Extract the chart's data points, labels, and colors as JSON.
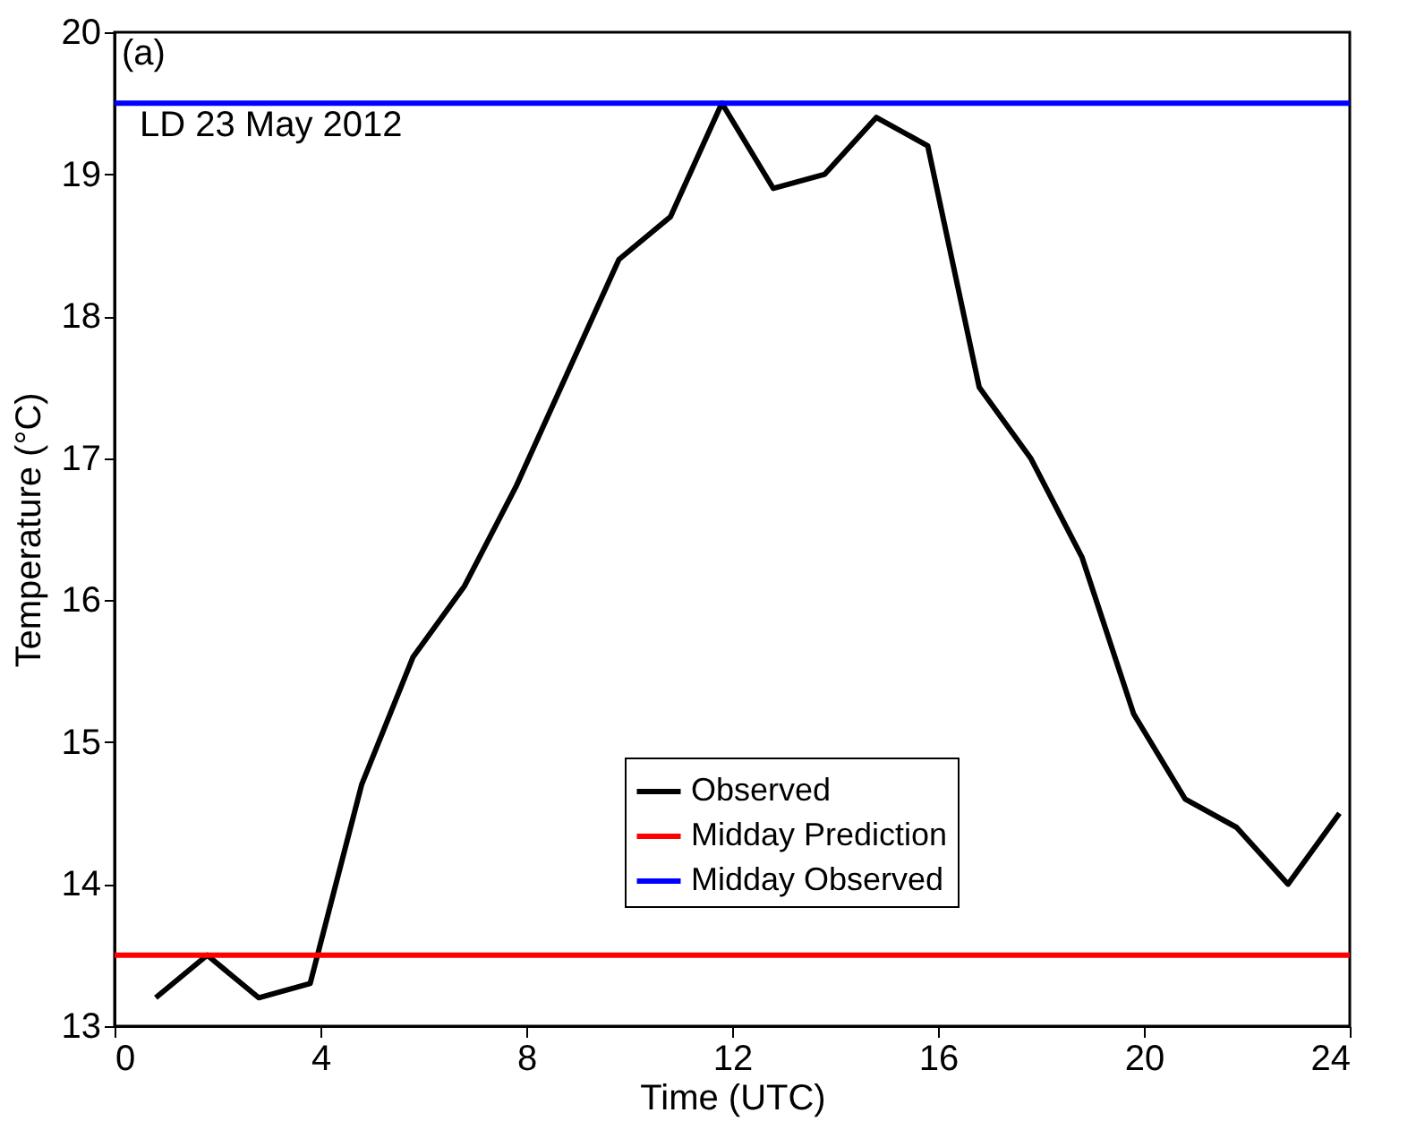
{
  "chart_data": {
    "type": "line",
    "xlabel": "Time (UTC)",
    "ylabel": "Temperature (°C)",
    "xlim": [
      0,
      24
    ],
    "xticks": [
      0,
      4,
      8,
      12,
      16,
      20,
      24
    ],
    "ylim": [
      13,
      20
    ],
    "yticks": [
      13,
      14,
      15,
      16,
      17,
      18,
      19,
      20
    ],
    "grid": false,
    "legend": "bottom right",
    "line_style": "solid",
    "marker": "none",
    "annotations": [
      "(a)",
      "LD 23 May 2012"
    ],
    "series": [
      {
        "name": "Observed",
        "color": "#000000",
        "x": [
          0.8,
          1.8,
          2.8,
          3.8,
          4.8,
          5.8,
          6.8,
          7.8,
          8.8,
          9.8,
          10.8,
          11.8,
          12.8,
          13.8,
          14.8,
          15.8,
          16.8,
          17.8,
          18.8,
          19.8,
          20.8,
          21.8,
          22.8,
          23.8
        ],
        "values": [
          13.2,
          13.5,
          13.2,
          13.3,
          14.7,
          15.6,
          16.1,
          16.8,
          17.6,
          18.4,
          18.7,
          19.5,
          18.9,
          19.0,
          19.4,
          19.2,
          17.5,
          17.0,
          16.3,
          15.2,
          14.6,
          14.4,
          14.0,
          14.5
        ]
      },
      {
        "name": "Midday Prediction",
        "color": "#ff0000",
        "x": [
          0,
          24
        ],
        "values": [
          13.5,
          13.5
        ]
      },
      {
        "name": "Midday Observed",
        "color": "#0000ff",
        "x": [
          0,
          24
        ],
        "values": [
          19.5,
          19.5
        ]
      }
    ]
  }
}
